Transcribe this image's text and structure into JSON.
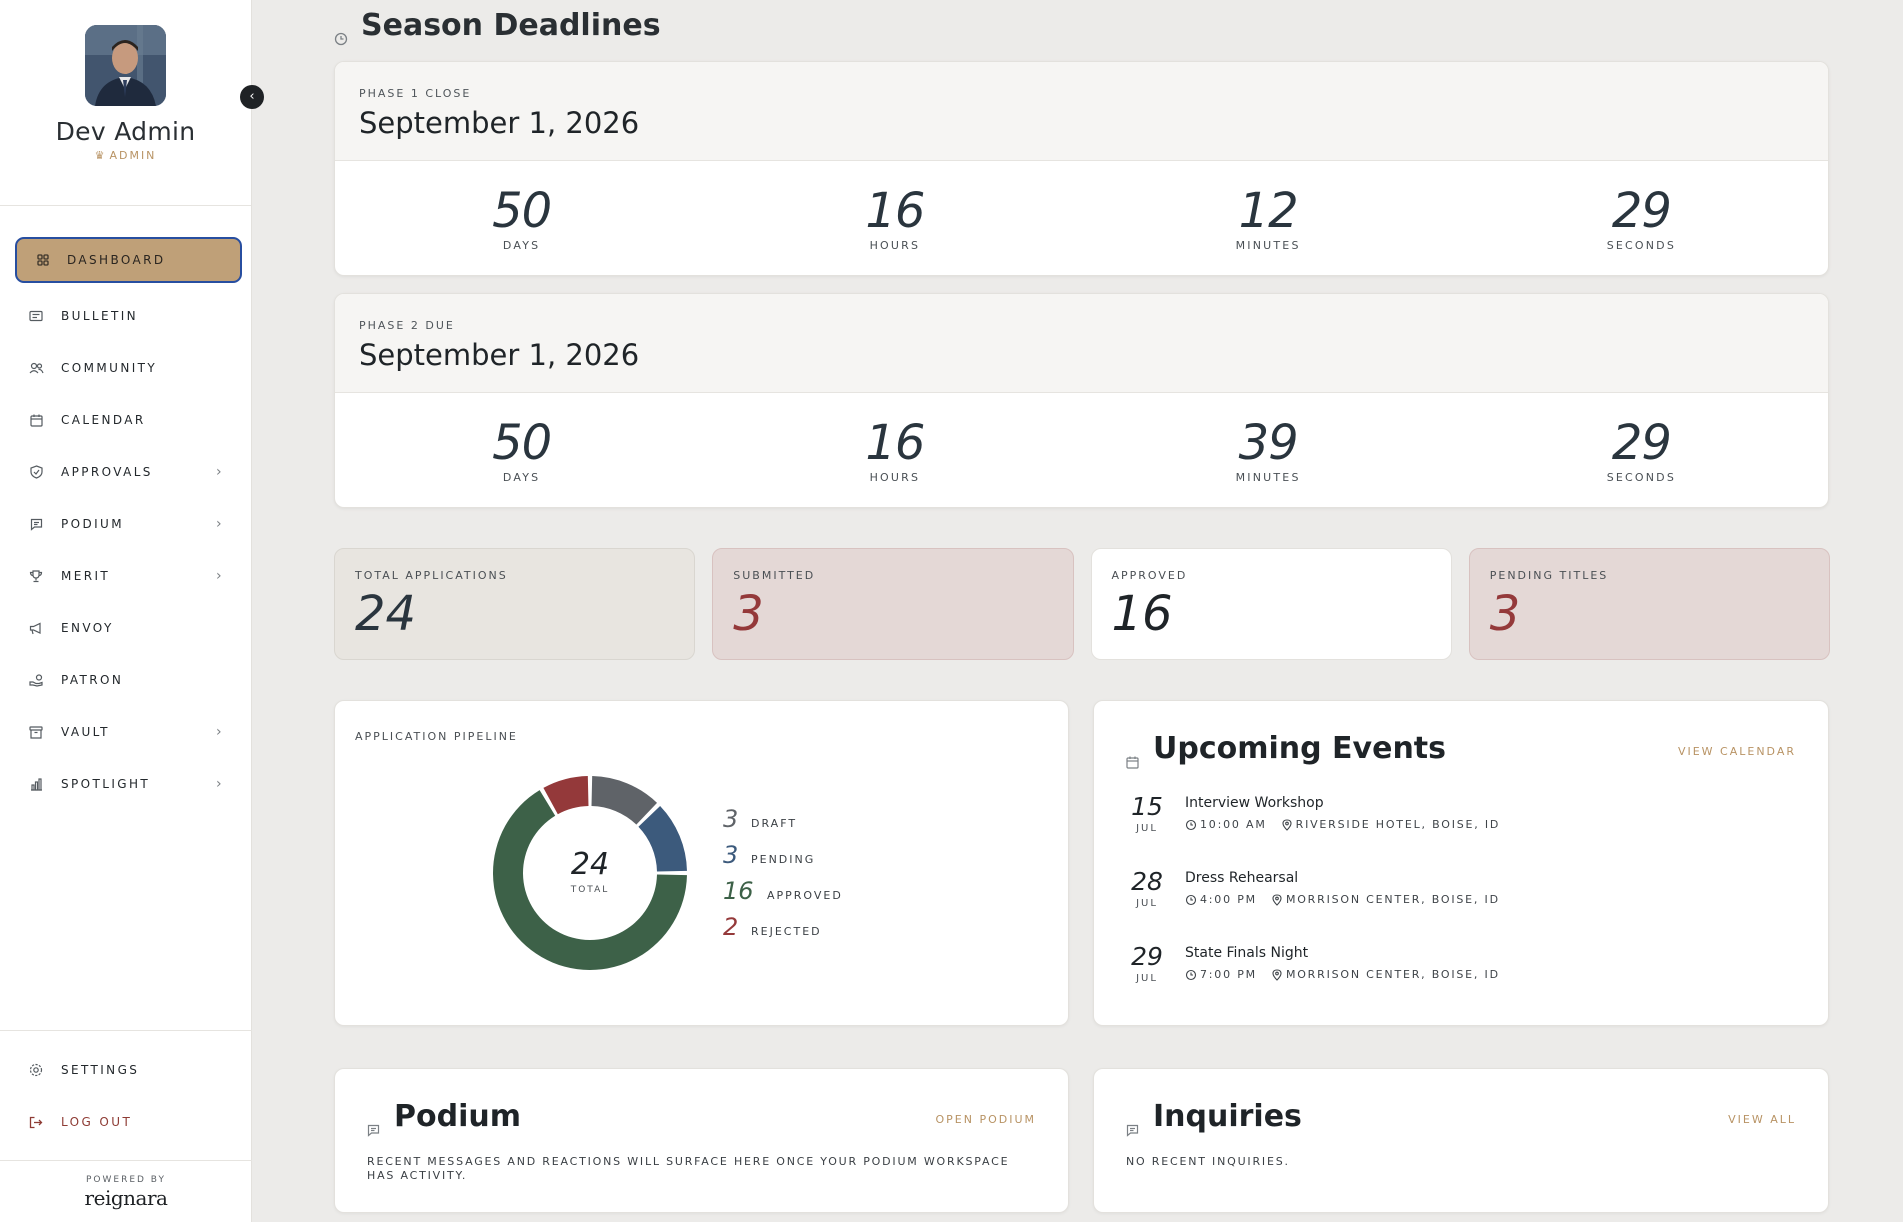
{
  "profile": {
    "name": "Dev Admin",
    "role": "ADMIN"
  },
  "nav": {
    "items": [
      {
        "label": "DASHBOARD",
        "icon": "grid-icon",
        "has_submenu": false
      },
      {
        "label": "BULLETIN",
        "icon": "newspaper-icon",
        "has_submenu": false
      },
      {
        "label": "COMMUNITY",
        "icon": "users-icon",
        "has_submenu": false
      },
      {
        "label": "CALENDAR",
        "icon": "calendar-icon",
        "has_submenu": false
      },
      {
        "label": "APPROVALS",
        "icon": "shield-check-icon",
        "has_submenu": true
      },
      {
        "label": "PODIUM",
        "icon": "message-square-icon",
        "has_submenu": true
      },
      {
        "label": "MERIT",
        "icon": "trophy-icon",
        "has_submenu": true
      },
      {
        "label": "ENVOY",
        "icon": "megaphone-icon",
        "has_submenu": false
      },
      {
        "label": "PATRON",
        "icon": "hand-coins-icon",
        "has_submenu": false
      },
      {
        "label": "VAULT",
        "icon": "archive-icon",
        "has_submenu": true
      },
      {
        "label": "SPOTLIGHT",
        "icon": "bar-chart-icon",
        "has_submenu": true
      }
    ],
    "settings_label": "SETTINGS",
    "logout_label": "LOG OUT"
  },
  "powered": {
    "label": "POWERED BY",
    "brand": "reignara"
  },
  "deadlines": {
    "title": "Season Deadlines",
    "phases": [
      {
        "label": "PHASE 1 CLOSE",
        "date": "September 1, 2026",
        "countdown": [
          {
            "value": "50",
            "unit": "DAYS"
          },
          {
            "value": "16",
            "unit": "HOURS"
          },
          {
            "value": "12",
            "unit": "MINUTES"
          },
          {
            "value": "29",
            "unit": "SECONDS"
          }
        ]
      },
      {
        "label": "PHASE 2 DUE",
        "date": "September 1, 2026",
        "countdown": [
          {
            "value": "50",
            "unit": "DAYS"
          },
          {
            "value": "16",
            "unit": "HOURS"
          },
          {
            "value": "39",
            "unit": "MINUTES"
          },
          {
            "value": "29",
            "unit": "SECONDS"
          }
        ]
      }
    ]
  },
  "stats": [
    {
      "label": "TOTAL APPLICATIONS",
      "value": "24"
    },
    {
      "label": "SUBMITTED",
      "value": "3"
    },
    {
      "label": "APPROVED",
      "value": "16"
    },
    {
      "label": "PENDING TITLES",
      "value": "3"
    }
  ],
  "pipeline": {
    "label": "APPLICATION PIPELINE",
    "total_label": "TOTAL",
    "legend": [
      {
        "value": "3",
        "label": "DRAFT"
      },
      {
        "value": "3",
        "label": "PENDING"
      },
      {
        "value": "16",
        "label": "APPROVED"
      },
      {
        "value": "2",
        "label": "REJECTED"
      }
    ]
  },
  "chart_data": {
    "type": "pie",
    "total": 24,
    "categories": [
      "Draft",
      "Pending",
      "Approved",
      "Rejected"
    ],
    "values": [
      3,
      3,
      16,
      2
    ],
    "colors": [
      "#5f6368",
      "#3c5a7c",
      "#3d6148",
      "#94393a"
    ]
  },
  "events": {
    "title": "Upcoming Events",
    "link": "VIEW CALENDAR",
    "items": [
      {
        "day": "15",
        "month": "JUL",
        "title": "Interview Workshop",
        "time": "10:00 AM",
        "location": "RIVERSIDE HOTEL, BOISE, ID"
      },
      {
        "day": "28",
        "month": "JUL",
        "title": "Dress Rehearsal",
        "time": "4:00 PM",
        "location": "MORRISON CENTER, BOISE, ID"
      },
      {
        "day": "29",
        "month": "JUL",
        "title": "State Finals Night",
        "time": "7:00 PM",
        "location": "MORRISON CENTER, BOISE, ID"
      }
    ]
  },
  "podium": {
    "title": "Podium",
    "link": "OPEN PODIUM",
    "text": "RECENT MESSAGES AND REACTIONS WILL SURFACE HERE ONCE YOUR PODIUM WORKSPACE HAS ACTIVITY."
  },
  "inquiries": {
    "title": "Inquiries",
    "link": "VIEW ALL",
    "text": "NO RECENT INQUIRIES."
  },
  "colors": {
    "accent": "#bfa078",
    "gold_text": "#b89364",
    "active_border": "#274ea0",
    "danger": "#94393a"
  }
}
